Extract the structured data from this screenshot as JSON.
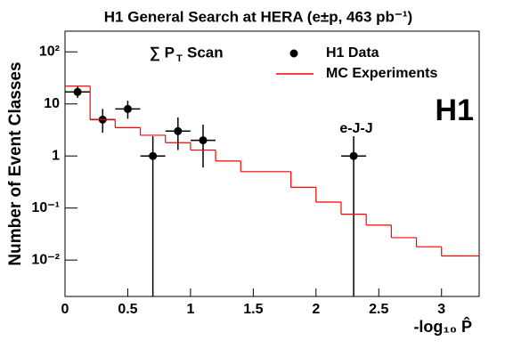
{
  "chart_data": {
    "type": "scatter",
    "title": "H1 General Search at HERA (e±p, 463 pb⁻¹)",
    "annotation_sum": "∑ P",
    "annotation_sub": "T",
    "annotation_rest": "Scan",
    "point_label": "e-J-J",
    "logo": "H1",
    "x_label": "-log₁₀ P̂",
    "y_label": "Number of Event Classes",
    "xlim": [
      0,
      3.3
    ],
    "ylim": [
      0.002,
      250
    ],
    "log_y": true,
    "xticks": [
      0,
      0.5,
      1,
      1.5,
      2,
      2.5,
      3
    ],
    "yticks": [
      {
        "value": 0.01,
        "label": "10⁻²"
      },
      {
        "value": 0.1,
        "label": "10⁻¹"
      },
      1,
      10,
      {
        "value": 100,
        "label": "10²"
      }
    ],
    "series": [
      {
        "name": "H1 Data",
        "type": "points",
        "color": "#000000",
        "x": [
          0.1,
          0.3,
          0.5,
          0.7,
          0.9,
          1.1,
          2.3
        ],
        "values": [
          17,
          5,
          8,
          1,
          3,
          2,
          1
        ],
        "error_low": [
          4,
          2.2,
          2.8,
          1,
          1.7,
          1.4,
          1
        ],
        "error_high": [
          4.5,
          3,
          3.5,
          1.4,
          2.5,
          2,
          1.4
        ]
      },
      {
        "name": "MC Experiments",
        "type": "step",
        "color": "#ff0000",
        "bins": [
          0,
          0.2,
          0.4,
          0.6,
          0.8,
          1.0,
          1.2,
          1.4,
          1.6,
          1.8,
          2.0,
          2.2,
          2.4,
          2.6,
          2.8,
          3.0,
          3.2,
          3.4
        ],
        "values": [
          22,
          5,
          3.5,
          2.5,
          1.8,
          1.3,
          0.8,
          0.5,
          0.5,
          0.25,
          0.13,
          0.076,
          0.047,
          0.027,
          0.018,
          0.012,
          0.012
        ]
      }
    ]
  }
}
